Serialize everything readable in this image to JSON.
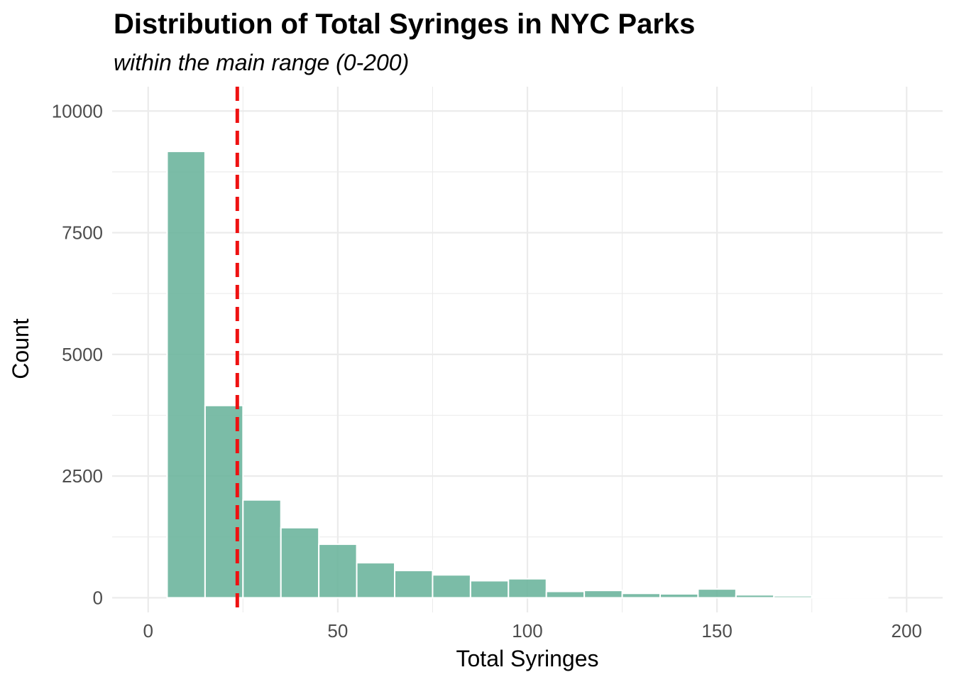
{
  "chart_data": {
    "type": "bar",
    "title": "Distribution of Total Syringes in NYC Parks",
    "subtitle": "within the main range (0-200)",
    "xlabel": "Total Syringes",
    "ylabel": "Count",
    "xlim": [
      -9.5,
      209.5
    ],
    "ylim": [
      -300,
      10500
    ],
    "x_ticks": [
      0,
      50,
      100,
      150,
      200
    ],
    "x_tick_labels": [
      "0",
      "50",
      "100",
      "150",
      "200"
    ],
    "y_ticks": [
      0,
      2500,
      5000,
      7500,
      10000
    ],
    "y_tick_labels": [
      "0",
      "2500",
      "5000",
      "7500",
      "10000"
    ],
    "bin_width": 10,
    "bins": [
      {
        "start": 5,
        "end": 15,
        "count": 9170
      },
      {
        "start": 15,
        "end": 25,
        "count": 3950
      },
      {
        "start": 25,
        "end": 35,
        "count": 2010
      },
      {
        "start": 35,
        "end": 45,
        "count": 1440
      },
      {
        "start": 45,
        "end": 55,
        "count": 1100
      },
      {
        "start": 55,
        "end": 65,
        "count": 720
      },
      {
        "start": 65,
        "end": 75,
        "count": 560
      },
      {
        "start": 75,
        "end": 85,
        "count": 470
      },
      {
        "start": 85,
        "end": 95,
        "count": 350
      },
      {
        "start": 95,
        "end": 105,
        "count": 390
      },
      {
        "start": 105,
        "end": 115,
        "count": 130
      },
      {
        "start": 115,
        "end": 125,
        "count": 150
      },
      {
        "start": 125,
        "end": 135,
        "count": 90
      },
      {
        "start": 135,
        "end": 145,
        "count": 80
      },
      {
        "start": 145,
        "end": 155,
        "count": 180
      },
      {
        "start": 155,
        "end": 165,
        "count": 60
      },
      {
        "start": 165,
        "end": 175,
        "count": 40
      },
      {
        "start": 175,
        "end": 185,
        "count": 20
      },
      {
        "start": 185,
        "end": 195,
        "count": 10
      }
    ],
    "reference_line": {
      "x": 23.5,
      "style": "dashed"
    },
    "grid": true,
    "legend": "none",
    "colors": {
      "bar": "#69b39b",
      "bar_outline": "#ffffff",
      "reference_line": "#ee1111",
      "grid": "#ebebeb"
    }
  }
}
